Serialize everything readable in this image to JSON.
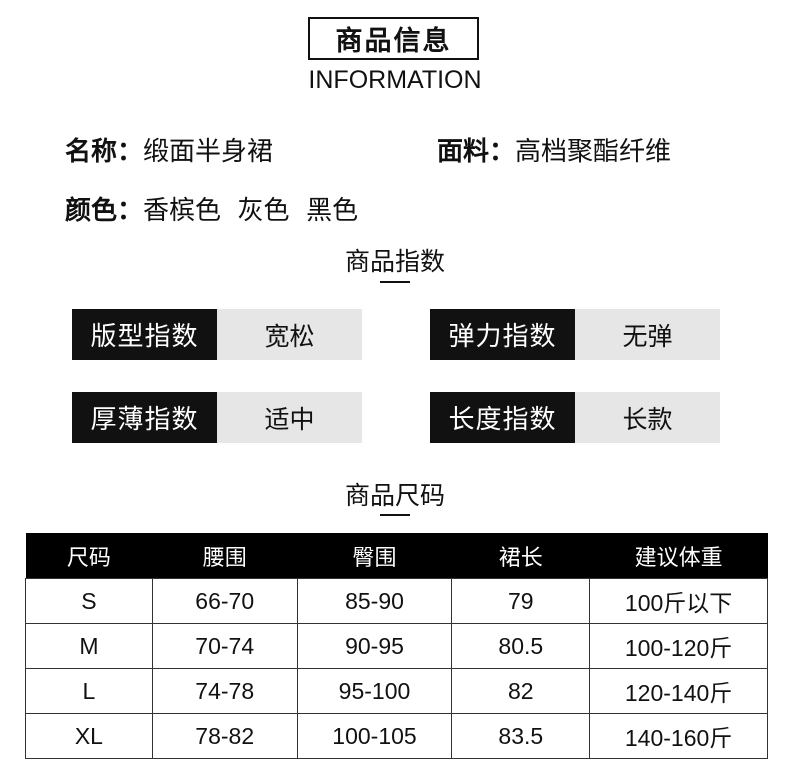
{
  "header": {
    "title": "商品信息",
    "subtitle": "INFORMATION"
  },
  "info": {
    "name_label": "名称：",
    "name_value": "缎面半身裙",
    "fabric_label": "面料：",
    "fabric_value": "高档聚酯纤维",
    "color_label": "颜色：",
    "color_value": "香槟色  灰色  黑色"
  },
  "index_section": {
    "title": "商品指数",
    "items": [
      {
        "key": "版型指数",
        "value": "宽松"
      },
      {
        "key": "弹力指数",
        "value": "无弹"
      },
      {
        "key": "厚薄指数",
        "value": "适中"
      },
      {
        "key": "长度指数",
        "value": "长款"
      }
    ]
  },
  "size_section": {
    "title": "商品尺码",
    "headers": [
      "尺码",
      "腰围",
      "臀围",
      "裙长",
      "建议体重"
    ],
    "rows": [
      [
        "S",
        "66-70",
        "85-90",
        "79",
        "100斤以下"
      ],
      [
        "M",
        "70-74",
        "90-95",
        "80.5",
        "100-120斤"
      ],
      [
        "L",
        "74-78",
        "95-100",
        "82",
        "120-140斤"
      ],
      [
        "XL",
        "78-82",
        "100-105",
        "83.5",
        "140-160斤"
      ]
    ]
  }
}
